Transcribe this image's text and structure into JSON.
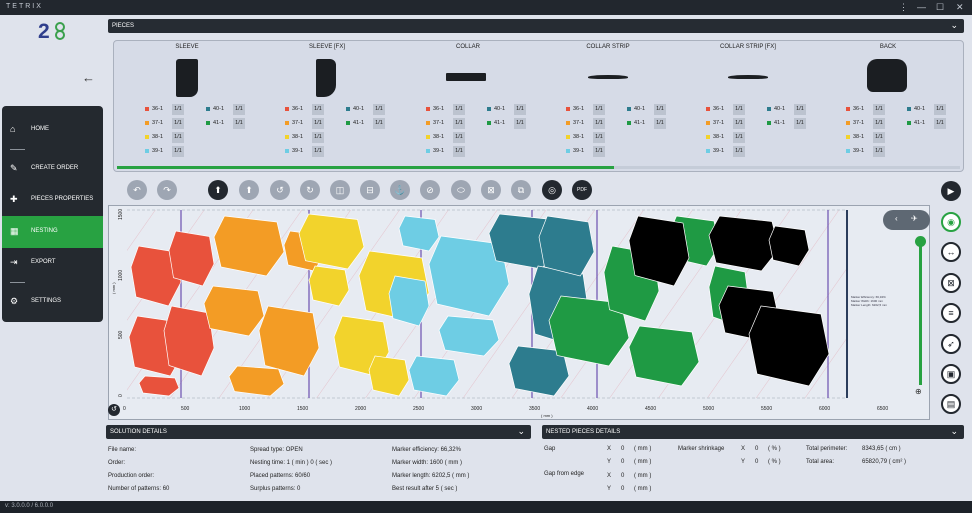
{
  "app": {
    "name": "TETRIX",
    "version": "v: 3.0.0.0 / 6.0.0.0"
  },
  "window": {
    "menu_icon": "⋮",
    "minimize_icon": "—",
    "maximize_icon": "☐",
    "close_icon": "✕"
  },
  "nav": {
    "items": [
      {
        "label": "HOME",
        "icon": "home-icon"
      },
      {
        "label": "CREATE ORDER",
        "icon": "pencil-icon"
      },
      {
        "label": "PIECES PROPERTIES",
        "icon": "puzzle-icon"
      },
      {
        "label": "NESTING",
        "icon": "grid-icon"
      },
      {
        "label": "EXPORT",
        "icon": "export-icon"
      },
      {
        "label": "SETTINGS",
        "icon": "gear-icon"
      }
    ],
    "active": "NESTING"
  },
  "pieces": {
    "header": "PIECES",
    "items": [
      {
        "name": "SLEEVE"
      },
      {
        "name": "SLEEVE [FX]"
      },
      {
        "name": "COLLAR"
      },
      {
        "name": "COLLAR STRIP"
      },
      {
        "name": "COLLAR STRIP [FX]"
      },
      {
        "name": "BACK"
      }
    ],
    "sizes_left": [
      {
        "label": "36-1",
        "qty": "1/1",
        "color": "#e8523c"
      },
      {
        "label": "37-1",
        "qty": "1/1",
        "color": "#f39c25"
      },
      {
        "label": "38-1",
        "qty": "1/1",
        "color": "#f2d32c"
      },
      {
        "label": "39-1",
        "qty": "1/1",
        "color": "#6ecde4"
      }
    ],
    "sizes_right": [
      {
        "label": "40-1",
        "qty": "1/1",
        "color": "#2d7c8e"
      },
      {
        "label": "41-1",
        "qty": "1/1",
        "color": "#1f9a44"
      }
    ],
    "progress": 0.59
  },
  "toolbar": {
    "icons": [
      "undo-icon",
      "redo-icon",
      "upload-icon",
      "upload-alt-icon",
      "rotate-left-icon",
      "rotate-right-icon",
      "flip-vertical-icon",
      "flip-horizontal-icon",
      "anchor-icon",
      "no-rotate-icon",
      "shape-icon",
      "fit-icon",
      "group-icon",
      "target-icon",
      "pdf-icon"
    ],
    "pdf_label": "PDF"
  },
  "marker": {
    "x_ticks": [
      "0",
      "500",
      "1000",
      "1500",
      "2000",
      "2500",
      "3000",
      "3500",
      "4000",
      "4500",
      "5000",
      "5500",
      "6000",
      "6500"
    ],
    "x_unit": "( mm )",
    "y_ticks": [
      "1500",
      "1000",
      "500",
      "0"
    ],
    "y_unit": "( mm )",
    "note_lines": [
      "Marker Efficiency: 66,32%",
      "Marker Width: 1600 mm",
      "Marker Length: 6202,5 mm"
    ]
  },
  "solution": {
    "header": "SOLUTION DETAILS",
    "file_name": "File name:",
    "order": "Order:",
    "production_order": "Production order:",
    "number_of_patterns": "Number of patterns: 60",
    "spread_type": "Spread type: OPEN",
    "nesting_time": "Nesting time: 1 ( min ) 0 ( sec )",
    "placed_patterns": "Placed patterns: 60/60",
    "surplus_patterns": "Surplus patterns: 0",
    "marker_efficiency": "Marker efficiency: 66,32%",
    "marker_width": "Marker width: 1600 ( mm )",
    "marker_length": "Marker length: 6202,5 ( mm )",
    "best_result": "Best result after 5 ( sec )"
  },
  "nested": {
    "header": "NESTED PIECES DETAILS",
    "gap": "Gap",
    "gap_from_edge": "Gap from edge",
    "x": "X",
    "y": "Y",
    "zero": "0",
    "mm": "( mm )",
    "pct": "( % )",
    "marker_shrinkage": "Marker shrinkage",
    "total_perimeter_label": "Total perimeter:",
    "total_perimeter_value": "8343,65 ( cm )",
    "total_area_label": "Total area:",
    "total_area_value": "65820,79 ( cm² )"
  }
}
